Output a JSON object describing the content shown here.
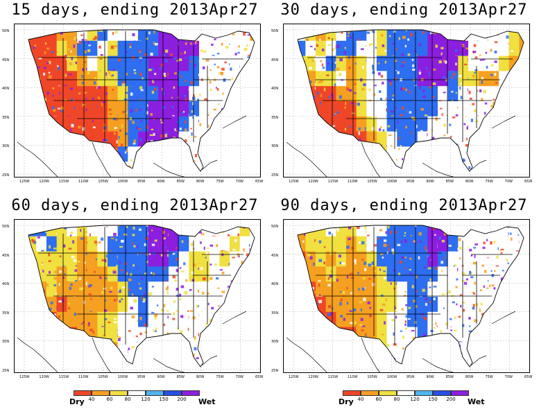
{
  "panels": [
    {
      "title": "15 days, ending 2013Apr27",
      "pattern": [
        "RRRROOWYBWWWBBPPPWWWWWWO",
        "RRRRYOBBWYBBBBPPPPWWWWWW",
        "RRRRRYOWYBBBBPPPPBWWWWWW",
        "RRRRRROOYYBBBPPPBBWWWWWW",
        "RRRRRRRRROYBBBPPPWWWWWWW",
        "RRRRRRRRROOBBPPPPBWWWWWW",
        "WWRRRRRRROOBBPPPBWWWWWWW",
        "WWWWRRRRRROBPPPPWWWWWWWW",
        "WWWWWWWWRRBWWWPBWWWWWWWW",
        "WWWWWWWWWRWWWWWPWWWWWWWW"
      ]
    },
    {
      "title": "30 days, ending 2013Apr27",
      "pattern": [
        "WWYOYWBBWYBBBBPPPWWWWWYO",
        "WBWYWBBWWYBBBBPPPPWWWWYO",
        "YYYWBYOYWBBBBPPPPYWWWYOR",
        "YOOYYWOYWWBBBPPPBYYOOWWW",
        "RRRRROOYWWBBBBBWBWWWWWWW",
        "RRRRRRRYWWBBBBBWWWWWWWWW",
        "WWRRRRROYWBBBBWWWWWWWWWW",
        "WWWWRRRROYWBBWWWWWWWWWWW",
        "WWWWWWWWRYWWWWWBWWWWWWWW",
        "WWWWWWWWWYWWWWWWWWWWWWWW"
      ]
    },
    {
      "title": "60 days, ending 2013Apr27",
      "pattern": [
        "WBBYYWYWWWBBBPPPBWWWWWYW",
        "YYWBYYOYWBBBBPPPBWWWWYWW",
        "OYYYYYOOYBBBBPPBWYYWYWWW",
        "OOYYOYOOOYBBBBBWWYYWWWWW",
        "ROOYOOOOOOYBBWWWWWWWWWWW",
        "RROOROOOOOYWBWWWWWWWWWWW",
        "WWRROOOOYYWWBWWWWWWWWWWW",
        "WWWWRROOYYWWWWWWWWWWWWWW",
        "WWWWWWWWROWWWWWBWWWWWWWW",
        "WWWWWWWWWOWWWWWWWWWWWWWW"
      ]
    },
    {
      "title": "90 days, ending 2013Apr27",
      "pattern": [
        "OOYYWYYWWWBBBBPPBWWWWWWW",
        "OOYYYYOYWBBBBBPPBWWWWWWW",
        "OROYOYOOYBBBBBPBWWWWWWWW",
        "RROOYOOOOYBBBBBWWWWWWWWW",
        "RRROOOOOOYYWBBWWWWWWWWWW",
        "RRRROOOOOYYWBBBWWWWWWWWW",
        "WWRRROOOOYWWBBWWWWWWWWWW",
        "WWWWRRROOYWWWBWWWWWWWWWW",
        "WWWWWWWWRYWWWWWBWWWWWWWW",
        "WWWWWWWWWYWWWWWWWWWWWWWW"
      ]
    }
  ],
  "lat_labels": [
    "50N",
    "45N",
    "40N",
    "35N",
    "30N",
    "25N"
  ],
  "lon_labels": [
    "125W",
    "120W",
    "115W",
    "110W",
    "105W",
    "100W",
    "95W",
    "90W",
    "85W",
    "80W",
    "75W",
    "70W",
    "65W"
  ],
  "legend": {
    "dry_label": "Dry",
    "wet_label": "Wet",
    "ticks": [
      "40",
      "60",
      "80",
      "120",
      "150",
      "200"
    ],
    "colors": [
      "#f04628",
      "#f5a020",
      "#f0e040",
      "#ffffff",
      "#50b4f0",
      "#2850e6",
      "#8c1ee0"
    ]
  },
  "palette": {
    "R": "#f04628",
    "O": "#f5a020",
    "Y": "#f0e040",
    "W": "#ffffff",
    "B": "#2e6ef0",
    "P": "#8c1ee0"
  }
}
